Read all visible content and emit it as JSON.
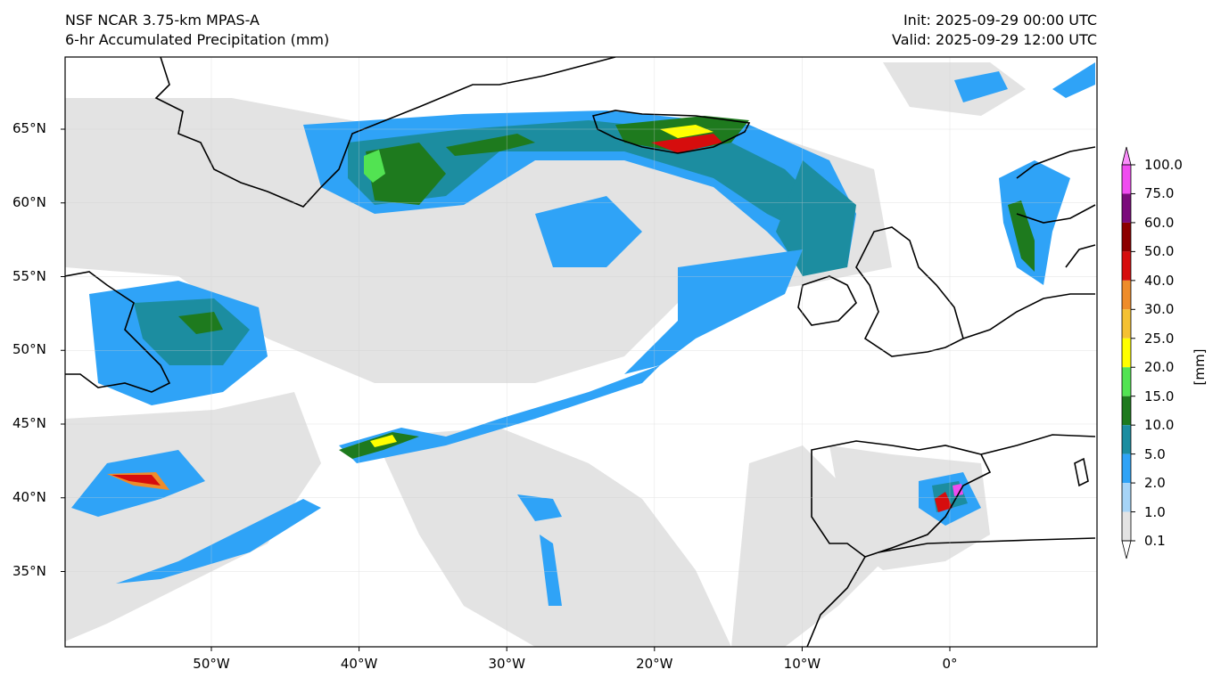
{
  "header": {
    "model": "NSF NCAR 3.75-km MPAS-A",
    "field": "6-hr Accumulated Precipitation (mm)",
    "init": "Init: 2025-09-29 00:00 UTC",
    "valid": "Valid: 2025-09-29 12:00 UTC"
  },
  "map": {
    "lat_labels": [
      "65°N",
      "60°N",
      "55°N",
      "50°N",
      "45°N",
      "40°N",
      "35°N"
    ],
    "lon_labels": [
      "50°W",
      "40°W",
      "30°W",
      "20°W",
      "10°W",
      "0°"
    ],
    "lat_values": [
      65,
      60,
      55,
      50,
      45,
      40,
      35
    ],
    "lon_values": [
      -50,
      -40,
      -30,
      -20,
      -10,
      0
    ],
    "grid": true,
    "land_coast_color": "#000000",
    "background": "#ffffff"
  },
  "colorbar": {
    "unit": "[mm]",
    "levels": [
      "0.1",
      "1.0",
      "2.0",
      "5.0",
      "10.0",
      "15.0",
      "20.0",
      "25.0",
      "30.0",
      "40.0",
      "50.0",
      "60.0",
      "75.0",
      "100.0"
    ],
    "colors": [
      "#e3e3e3",
      "#a6d4f7",
      "#2fa3f7",
      "#1c8da0",
      "#1e7a1e",
      "#52e352",
      "#ffff00",
      "#f5c132",
      "#ee8c2a",
      "#d60d0d",
      "#8c0000",
      "#7b0b7b",
      "#f04cf0"
    ],
    "under_color": "#ffffff",
    "over_color": "#fb8efb"
  }
}
